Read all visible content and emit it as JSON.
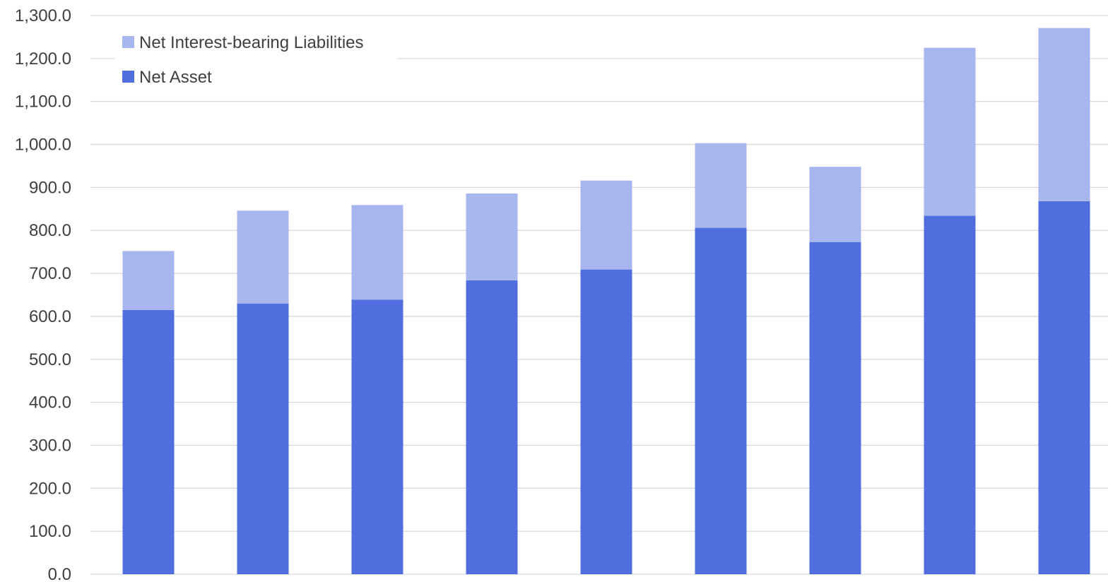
{
  "chart_data": {
    "type": "bar",
    "stacked": true,
    "title": "",
    "xlabel": "",
    "ylabel": "",
    "categories": [
      "",
      "",
      "",
      "",
      "",
      "",
      "",
      "",
      ""
    ],
    "series": [
      {
        "name": "Net Asset",
        "color": "#506ede",
        "values": [
          615,
          630,
          639,
          684,
          709,
          806,
          773,
          834,
          868
        ]
      },
      {
        "name": "Net Interest-bearing Liabilities",
        "color": "#a8b6ee",
        "values": [
          137,
          216,
          220,
          202,
          207,
          197,
          175,
          391,
          403
        ]
      }
    ],
    "ylim": [
      0,
      1300
    ],
    "yticks": [
      "0.0",
      "100.0",
      "200.0",
      "300.0",
      "400.0",
      "500.0",
      "600.0",
      "700.0",
      "800.0",
      "900.0",
      "1,000.0",
      "1,100.0",
      "1,200.0",
      "1,300.0"
    ],
    "grid": true,
    "legend": {
      "position": "top-left",
      "entries": [
        "Net Interest-bearing Liabilities",
        "Net Asset"
      ]
    }
  }
}
